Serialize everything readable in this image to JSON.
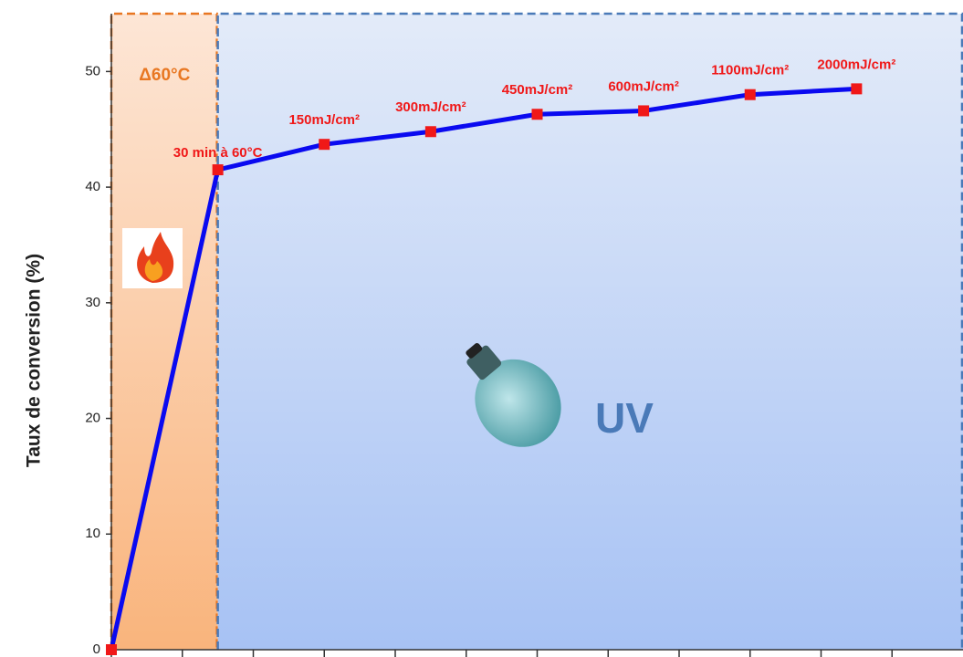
{
  "chart_data": {
    "type": "line",
    "y_label": "Taux de conversion (%)",
    "x": [
      0,
      3,
      6,
      9,
      12,
      15,
      18,
      21
    ],
    "values": [
      0,
      41.5,
      43.7,
      44.8,
      46.3,
      46.6,
      48.0,
      48.5
    ],
    "point_labels": [
      null,
      "30 min à 60°C",
      "150mJ/cm²",
      "300mJ/cm²",
      "450mJ/cm²",
      "600mJ/cm²",
      "1100mJ/cm²",
      "2000mJ/cm²"
    ],
    "line_color": "#0a0af0",
    "marker_color": "#f01818",
    "xlim": [
      0,
      24
    ],
    "xticks": [
      0,
      2,
      4,
      6,
      8,
      10,
      12,
      14,
      16,
      18,
      20,
      22
    ],
    "ylim": [
      0,
      55
    ],
    "yticks": [
      0,
      10,
      20,
      30,
      40,
      50
    ],
    "regions": [
      {
        "label": "Δ60°C",
        "xlim": [
          0,
          3
        ],
        "color": "#e87722"
      },
      {
        "label": "UV",
        "xlim": [
          3,
          24
        ],
        "color": "#4a7ab8"
      }
    ]
  }
}
